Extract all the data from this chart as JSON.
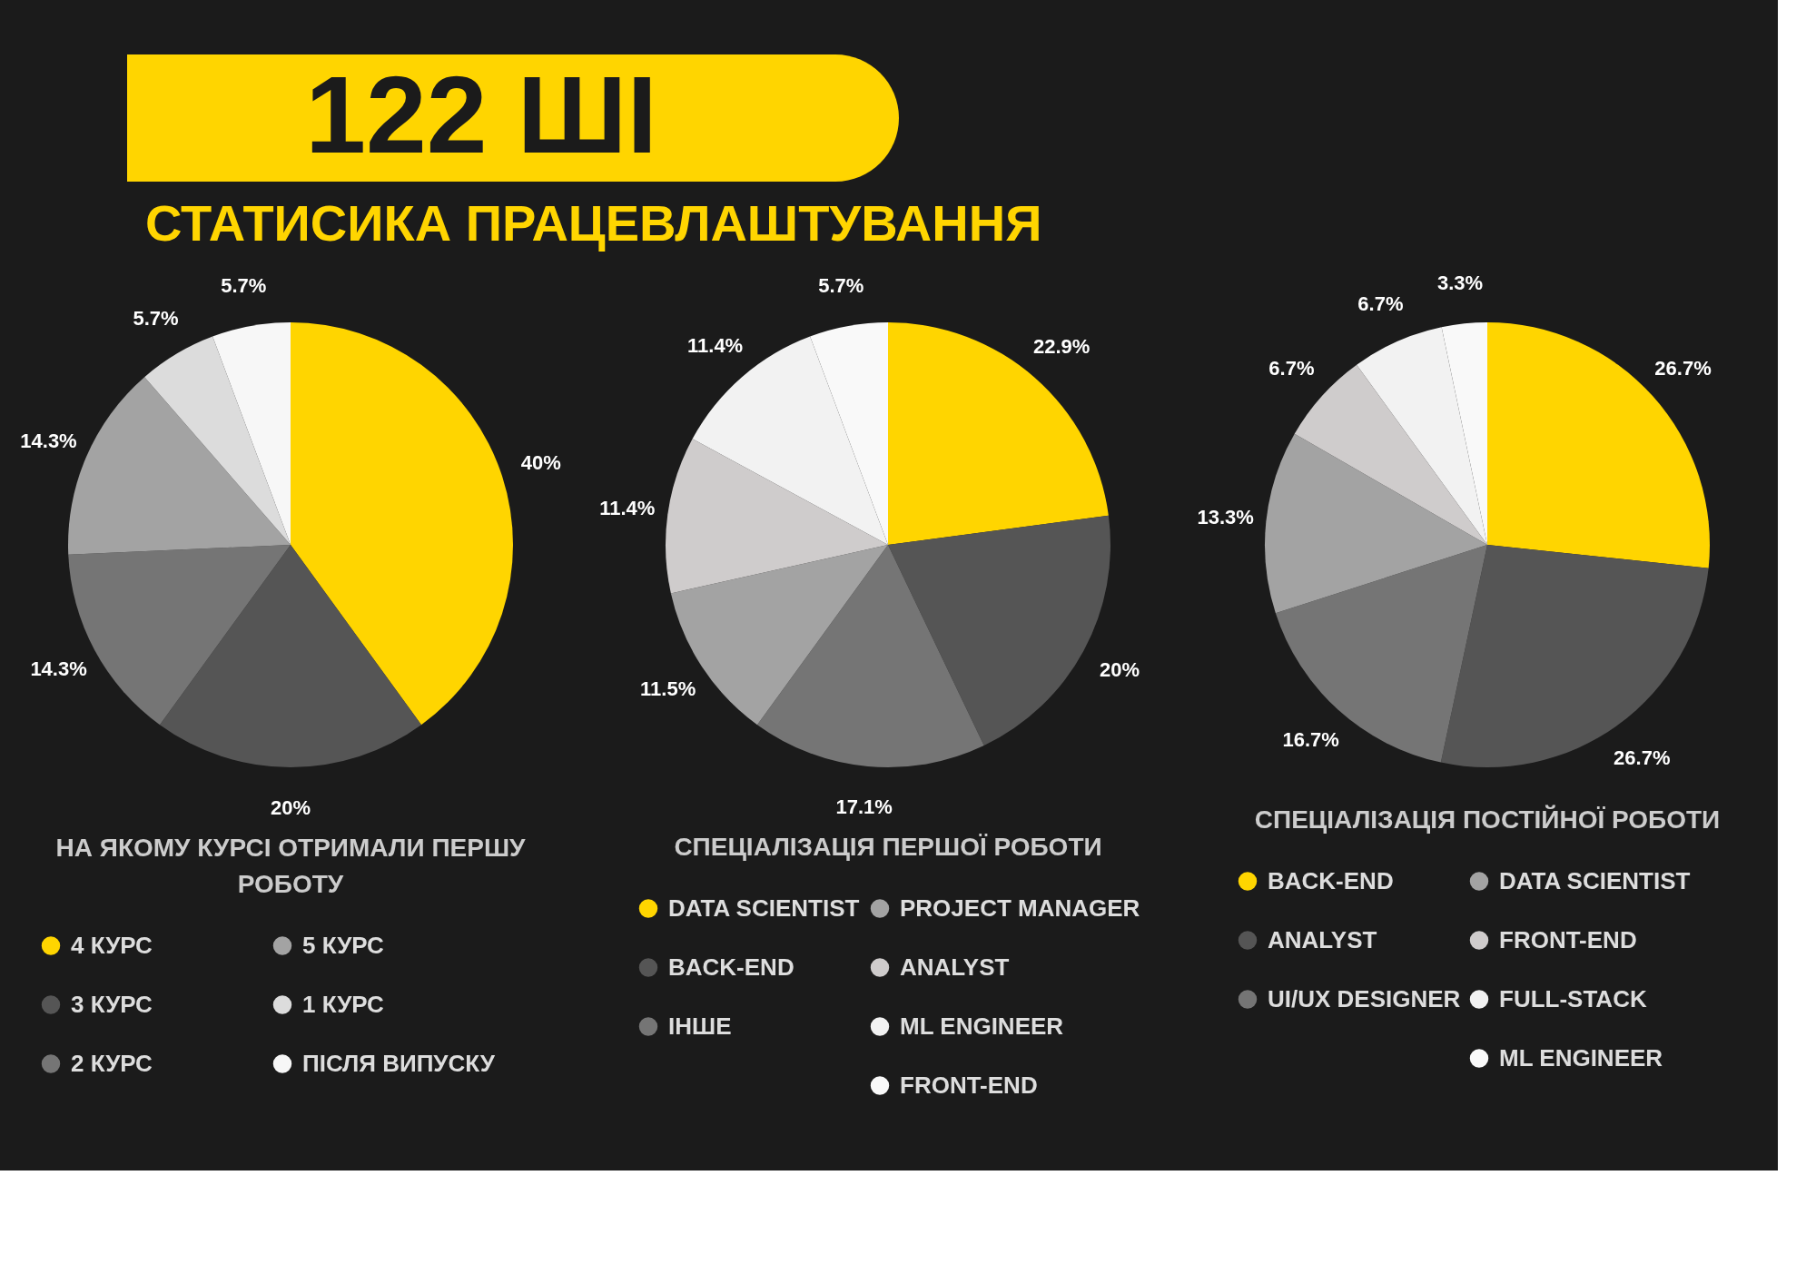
{
  "chart_data": [
    {
      "type": "pie",
      "title": "122 ШІ",
      "subtitle": "СТАТИСИКА ПРАЦЕВЛАШТУВАННЯ",
      "legend_title": "НА ЯКОМУ КУРСІ ОТРИМАЛИ ПЕРШУ РОБОТУ",
      "legend": "bottom",
      "categories": [
        "4 КУРС",
        "3 КУРС",
        "2 КУРС",
        "5 КУРС",
        "1 КУРС",
        "ПІСЛЯ ВИПУСКУ"
      ],
      "values": [
        40,
        20,
        14.3,
        14.3,
        5.7,
        5.7
      ],
      "value_labels": [
        "40%",
        "20%",
        "14.3%",
        "14.3%",
        "5.7%",
        "5.7%"
      ],
      "colors": [
        "#ffd500",
        "#555555",
        "#757575",
        "#a3a3a3",
        "#dcdcdc",
        "#f7f7f7"
      ]
    },
    {
      "type": "pie",
      "legend_title": "СПЕЦІАЛІЗАЦІЯ ПЕРШОЇ РОБОТИ",
      "legend": "bottom",
      "categories": [
        "DATA SCIENTIST",
        "BACK-END",
        "ІНШЕ",
        "PROJECT MANAGER",
        "ANALYST",
        "ML ENGINEER",
        "FRONT-END"
      ],
      "values": [
        22.9,
        20,
        17.1,
        11.5,
        11.4,
        11.4,
        5.7
      ],
      "value_labels": [
        "22.9%",
        "20%",
        "17.1%",
        "11.5%",
        "11.4%",
        "11.4%",
        "5.7%"
      ],
      "colors": [
        "#ffd500",
        "#555555",
        "#757575",
        "#a3a3a3",
        "#cfcccc",
        "#f2f2f2",
        "#f9f9f9"
      ]
    },
    {
      "type": "pie",
      "legend_title": "СПЕЦІАЛІЗАЦІЯ ПОСТІЙНОЇ РОБОТИ",
      "legend": "bottom",
      "categories": [
        "BACK-END",
        "ANALYST",
        "UI/UX DESIGNER",
        "DATA SCIENTIST",
        "FRONT-END",
        "FULL-STACK",
        "ML ENGINEER"
      ],
      "values": [
        26.7,
        26.7,
        16.7,
        13.3,
        6.7,
        6.7,
        3.3
      ],
      "value_labels": [
        "26.7%",
        "26.7%",
        "16.7%",
        "13.3%",
        "6.7%",
        "6.7%",
        "3.3%"
      ],
      "colors": [
        "#ffd500",
        "#555555",
        "#757575",
        "#a3a3a3",
        "#cfcccc",
        "#f2f2f2",
        "#f9f9f9"
      ]
    }
  ]
}
